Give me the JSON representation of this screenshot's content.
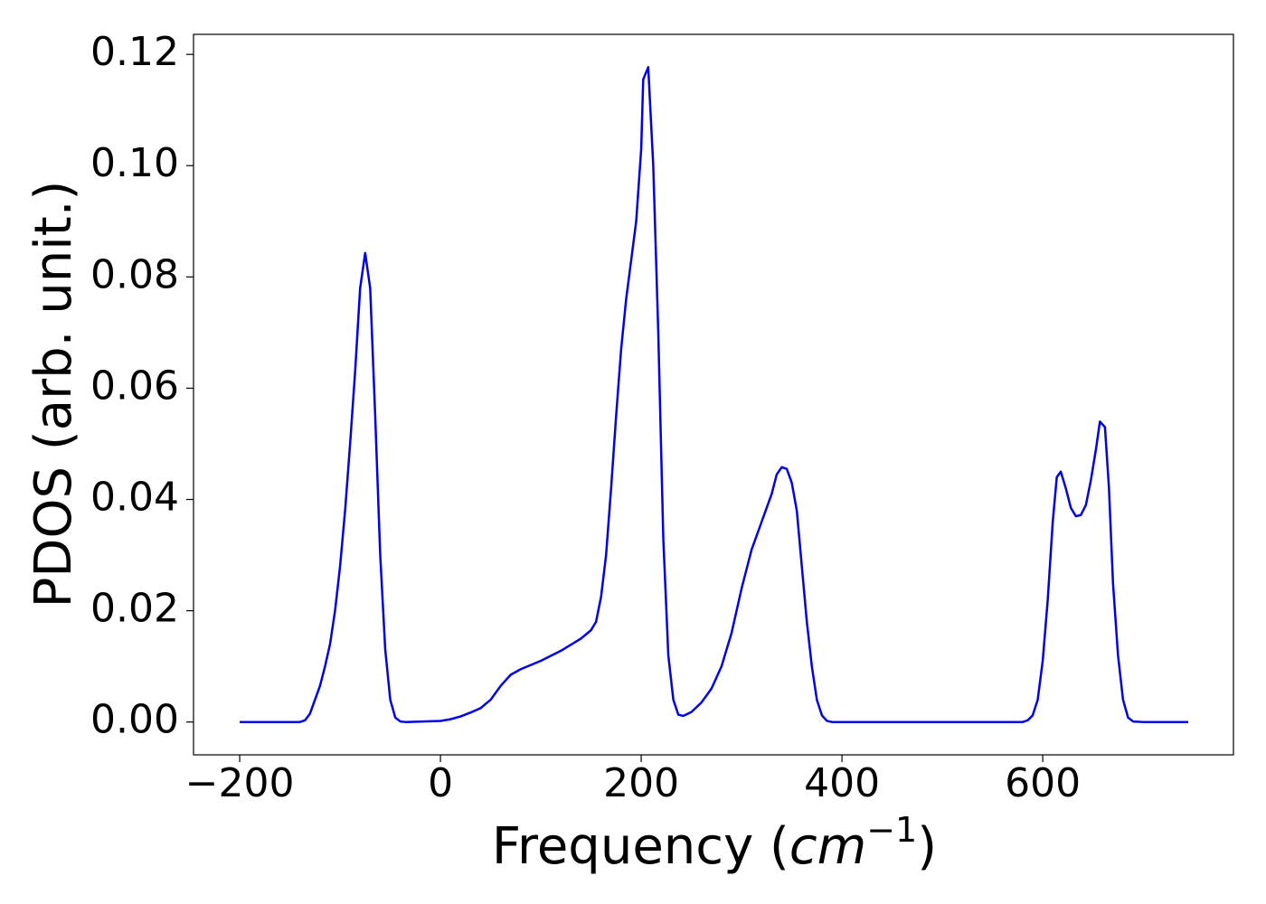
{
  "chart_data": {
    "type": "line",
    "xlabel": {
      "prefix": "Frequency (",
      "unit": "cm",
      "exponent": "−1",
      "suffix": ")"
    },
    "ylabel": "PDOS (arb. unit.)",
    "xlim": [
      -246,
      790
    ],
    "ylim": [
      -0.0059,
      0.1236
    ],
    "xticks": [
      {
        "value": -200,
        "label": "−200"
      },
      0,
      200,
      400,
      600
    ],
    "yticks": [
      {
        "value": 0,
        "label": "0.00"
      },
      {
        "value": 0.02,
        "label": "0.02"
      },
      {
        "value": 0.04,
        "label": "0.04"
      },
      {
        "value": 0.06,
        "label": "0.06"
      },
      {
        "value": 0.08,
        "label": "0.08"
      },
      {
        "value": 0.1,
        "label": "0.10"
      },
      {
        "value": 0.12,
        "label": "0.12"
      }
    ],
    "x": [
      -200,
      -140,
      -135,
      -130,
      -125,
      -120,
      -115,
      -110,
      -105,
      -100,
      -95,
      -90,
      -85,
      -80,
      -75,
      -70,
      -65,
      -60,
      -55,
      -50,
      -45,
      -40,
      -35,
      0,
      10,
      20,
      30,
      40,
      50,
      60,
      70,
      80,
      100,
      120,
      140,
      150,
      155,
      160,
      165,
      170,
      175,
      180,
      185,
      190,
      195,
      200,
      202,
      207,
      212,
      217,
      222,
      227,
      232,
      237,
      242,
      250,
      260,
      270,
      280,
      290,
      300,
      310,
      320,
      330,
      335,
      340,
      345,
      350,
      355,
      360,
      365,
      370,
      375,
      380,
      385,
      390,
      580,
      585,
      590,
      595,
      600,
      605,
      610,
      614,
      618,
      623,
      628,
      633,
      638,
      643,
      648,
      653,
      657,
      662,
      666,
      670,
      675,
      680,
      685,
      690,
      700,
      745
    ],
    "series": [
      {
        "name": "PDOS",
        "color": "#0000ee",
        "values": [
          0,
          0,
          0.0003,
          0.0015,
          0.004,
          0.0065,
          0.01,
          0.014,
          0.02,
          0.028,
          0.038,
          0.05,
          0.063,
          0.078,
          0.0843,
          0.078,
          0.055,
          0.03,
          0.013,
          0.004,
          0.0008,
          0.0001,
          0,
          0.0002,
          0.0005,
          0.001,
          0.0017,
          0.0025,
          0.004,
          0.0065,
          0.0085,
          0.0095,
          0.011,
          0.0128,
          0.015,
          0.0165,
          0.018,
          0.0225,
          0.03,
          0.042,
          0.055,
          0.067,
          0.076,
          0.083,
          0.09,
          0.103,
          0.1155,
          0.1177,
          0.1,
          0.07,
          0.033,
          0.012,
          0.004,
          0.0013,
          0.0011,
          0.0018,
          0.0035,
          0.006,
          0.01,
          0.016,
          0.024,
          0.031,
          0.036,
          0.041,
          0.0445,
          0.0458,
          0.0455,
          0.043,
          0.038,
          0.028,
          0.018,
          0.01,
          0.004,
          0.0012,
          0.0002,
          0,
          0,
          0.0003,
          0.0012,
          0.004,
          0.011,
          0.022,
          0.036,
          0.044,
          0.045,
          0.042,
          0.0385,
          0.037,
          0.0372,
          0.039,
          0.0435,
          0.049,
          0.054,
          0.053,
          0.042,
          0.025,
          0.012,
          0.004,
          0.0008,
          0.0001,
          0,
          0
        ]
      }
    ]
  }
}
